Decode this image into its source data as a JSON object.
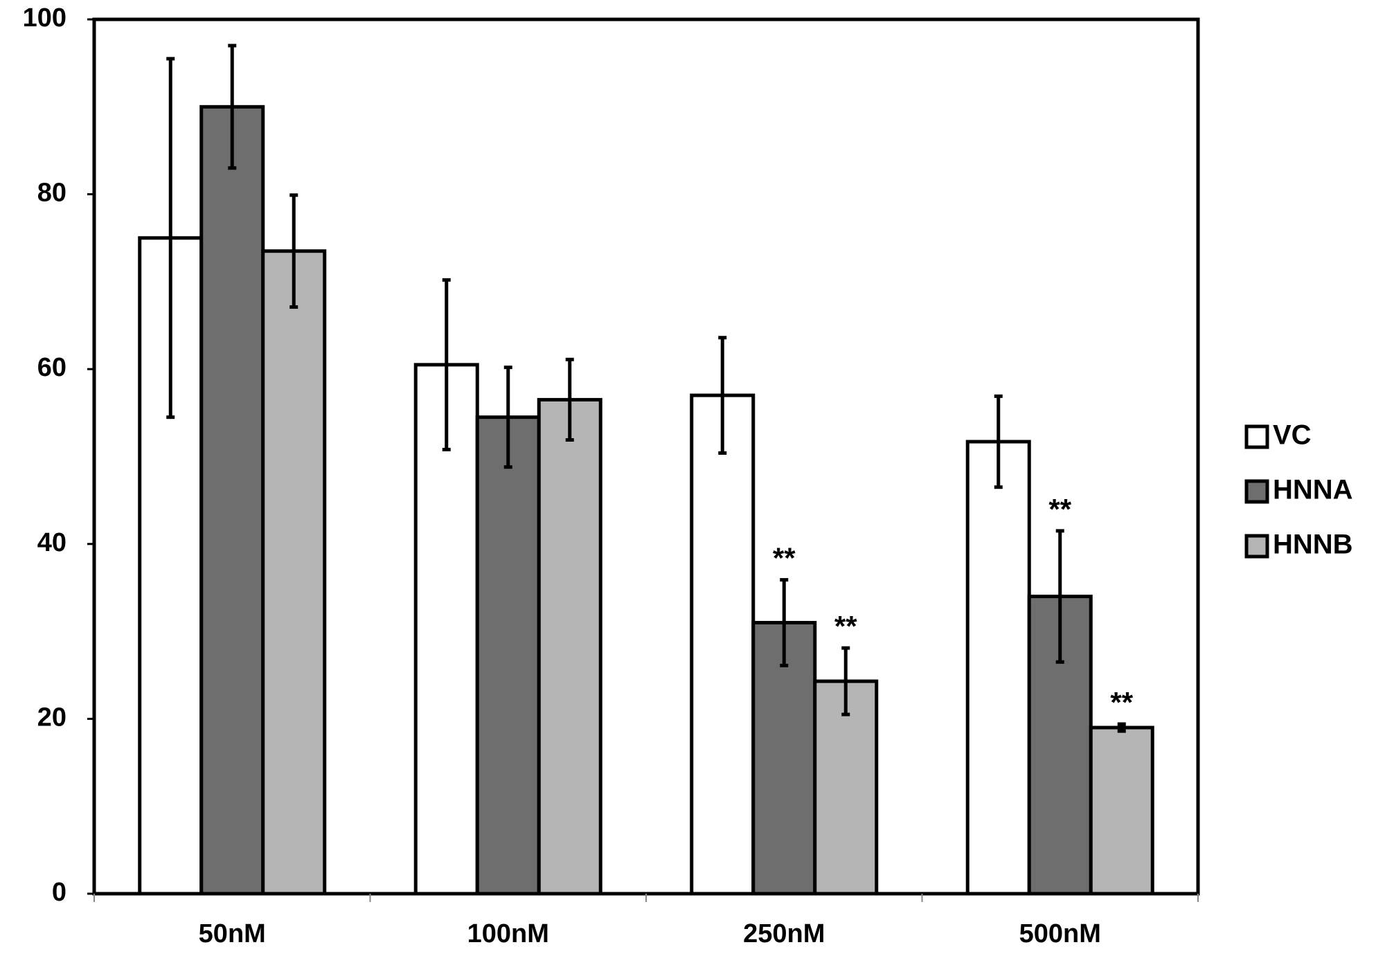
{
  "chart_data": {
    "type": "bar",
    "categories": [
      "50nM",
      "100nM",
      "250nM",
      "500nM"
    ],
    "series": [
      {
        "name": "VC",
        "color": "#ffffff",
        "values": [
          75,
          60.5,
          57,
          51.7
        ],
        "errors": [
          20.5,
          9.7,
          6.6,
          5.2
        ]
      },
      {
        "name": "HNNA",
        "color": "#6e6e6e",
        "values": [
          90,
          54.5,
          31,
          34
        ],
        "errors": [
          7,
          5.7,
          4.9,
          7.5
        ]
      },
      {
        "name": "HNNB",
        "color": "#b5b5b5",
        "values": [
          73.5,
          56.5,
          24.3,
          19
        ],
        "errors": [
          6.4,
          4.6,
          3.8,
          0.4
        ]
      }
    ],
    "annotations": [
      {
        "text": "**",
        "category": "250nM",
        "series": "HNNA"
      },
      {
        "text": "**",
        "category": "250nM",
        "series": "HNNB"
      },
      {
        "text": "**",
        "category": "500nM",
        "series": "HNNA"
      },
      {
        "text": "**",
        "category": "500nM",
        "series": "HNNB"
      }
    ],
    "ylim": [
      0,
      100
    ],
    "yticks": [
      0,
      20,
      40,
      60,
      80,
      100
    ],
    "grid": false,
    "legend": "right"
  }
}
